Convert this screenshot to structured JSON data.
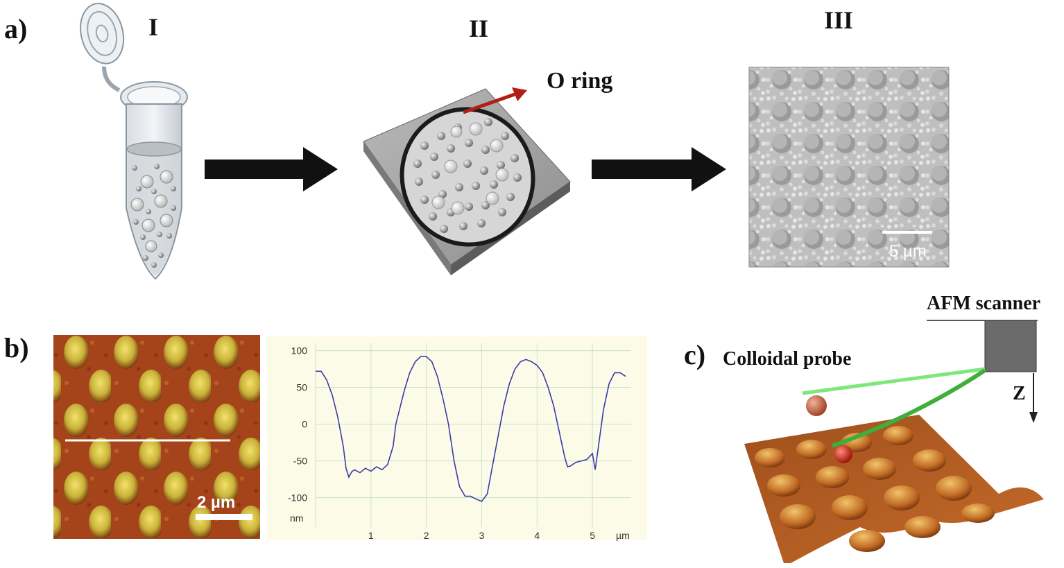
{
  "panels": {
    "a": {
      "letter": "a)",
      "steps": [
        "I",
        "II",
        "III"
      ],
      "o_ring_label": "O ring",
      "sem_scalebar": "5 µm"
    },
    "b": {
      "letter": "b)",
      "afm_scalebar": "2 µm"
    },
    "c": {
      "letter": "c)",
      "afm_scanner_label": "AFM scanner",
      "colloidal_probe_label": "Colloidal probe",
      "z_label": "Z"
    }
  },
  "chart_data": {
    "type": "line",
    "xlabel": "µm",
    "ylabel": "nm",
    "xlim": [
      0,
      5.7
    ],
    "ylim": [
      -140,
      110
    ],
    "x_ticks": [
      1,
      2,
      3,
      4,
      5
    ],
    "y_ticks": [
      100,
      50,
      0,
      -50,
      -100
    ],
    "line_color": "#3a3aa8",
    "background_color": "#fbfbe8",
    "grid": true,
    "series": [
      {
        "x": [
          0.0,
          0.1,
          0.2,
          0.3,
          0.4,
          0.5,
          0.55,
          0.6,
          0.65,
          0.7,
          0.8,
          0.9,
          1.0,
          1.1,
          1.2,
          1.3,
          1.4,
          1.45,
          1.5,
          1.6,
          1.7,
          1.8,
          1.9,
          2.0,
          2.1,
          2.2,
          2.3,
          2.4,
          2.5,
          2.6,
          2.7,
          2.8,
          2.9,
          3.0,
          3.1,
          3.2,
          3.3,
          3.4,
          3.5,
          3.6,
          3.7,
          3.8,
          3.9,
          4.0,
          4.1,
          4.2,
          4.3,
          4.4,
          4.5,
          4.55,
          4.6,
          4.7,
          4.8,
          4.9,
          5.0,
          5.05,
          5.1,
          5.2,
          5.3,
          5.4,
          5.5,
          5.6
        ],
        "y": [
          72,
          72,
          60,
          40,
          10,
          -30,
          -60,
          -72,
          -65,
          -62,
          -66,
          -60,
          -64,
          -58,
          -62,
          -55,
          -30,
          0,
          15,
          45,
          70,
          85,
          92,
          92,
          85,
          65,
          35,
          0,
          -50,
          -85,
          -98,
          -98,
          -102,
          -105,
          -95,
          -55,
          -15,
          25,
          55,
          75,
          85,
          88,
          85,
          80,
          70,
          50,
          25,
          -10,
          -45,
          -58,
          -57,
          -52,
          -50,
          -48,
          -40,
          -62,
          -35,
          20,
          55,
          70,
          70,
          65
        ]
      }
    ]
  }
}
